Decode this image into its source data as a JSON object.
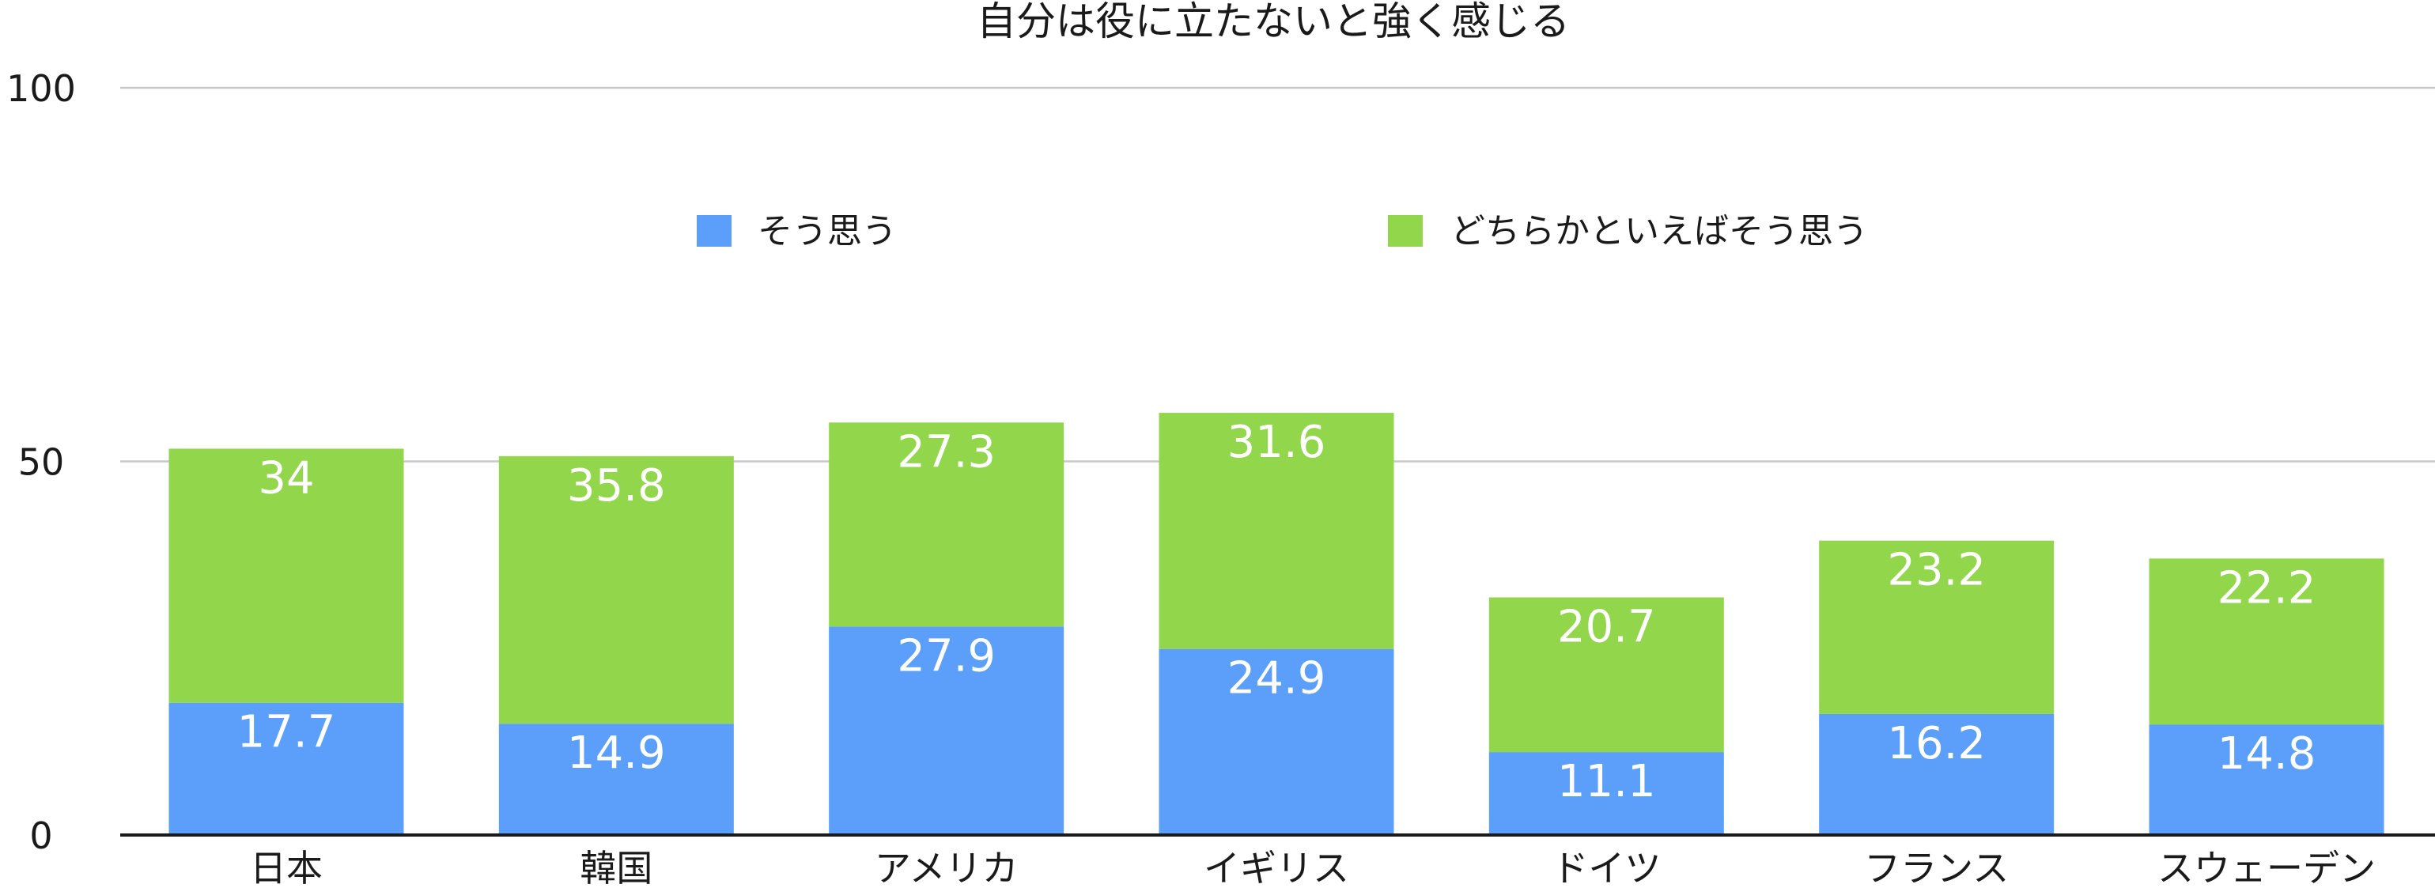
{
  "chart_data": {
    "type": "bar",
    "stacked": true,
    "title": "自分は役に立たないと強く感じる",
    "xlabel": "",
    "ylabel": "",
    "categories": [
      "日本",
      "韓国",
      "アメリカ",
      "イギリス",
      "ドイツ",
      "フランス",
      "スウェーデン"
    ],
    "series": [
      {
        "name": "そう思う",
        "color": "#5b9ffb",
        "values": [
          17.7,
          14.9,
          27.9,
          24.9,
          11.1,
          16.2,
          14.8
        ]
      },
      {
        "name": "どちらかといえばそう思う",
        "color": "#92d64c",
        "values": [
          34,
          35.8,
          27.3,
          31.6,
          20.7,
          23.2,
          22.2
        ]
      }
    ],
    "ylim": [
      0,
      100
    ],
    "yticks": [
      "0",
      "50",
      "100"
    ],
    "grid": true,
    "legend_position": "top-center",
    "data_labels": true
  }
}
